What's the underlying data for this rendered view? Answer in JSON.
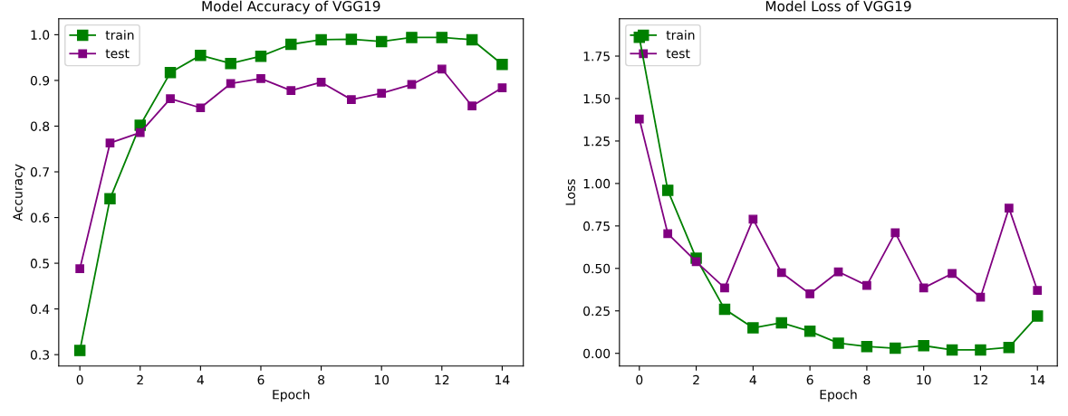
{
  "chart_data": [
    {
      "type": "line",
      "title": "Model Accuracy of VGG19",
      "xlabel": "Epoch",
      "ylabel": "Accuracy",
      "x": [
        0,
        1,
        2,
        3,
        4,
        5,
        6,
        7,
        8,
        9,
        10,
        11,
        12,
        13,
        14
      ],
      "series": [
        {
          "name": "train",
          "color": "#008000",
          "values": [
            0.309,
            0.641,
            0.802,
            0.917,
            0.955,
            0.937,
            0.953,
            0.979,
            0.989,
            0.99,
            0.985,
            0.994,
            0.994,
            0.989,
            0.935
          ]
        },
        {
          "name": "test",
          "color": "#800080",
          "values": [
            0.488,
            0.763,
            0.786,
            0.86,
            0.84,
            0.893,
            0.904,
            0.878,
            0.896,
            0.858,
            0.872,
            0.891,
            0.925,
            0.844,
            0.884
          ]
        }
      ],
      "xlim": [
        -0.7,
        14.7
      ],
      "xticks": [
        0,
        2,
        4,
        6,
        8,
        10,
        12,
        14
      ],
      "ylim": [
        0.275,
        1.035
      ],
      "yticks": [
        {
          "value": 0.3,
          "label": "0.3"
        },
        {
          "value": 0.4,
          "label": "0.4"
        },
        {
          "value": 0.5,
          "label": "0.5"
        },
        {
          "value": 0.6,
          "label": "0.6"
        },
        {
          "value": 0.7,
          "label": "0.7"
        },
        {
          "value": 0.8,
          "label": "0.8"
        },
        {
          "value": 0.9,
          "label": "0.9"
        },
        {
          "value": 1.0,
          "label": "1.0"
        }
      ],
      "legend": "top left",
      "marker": "square",
      "line_style": "solid",
      "grid": false
    },
    {
      "type": "line",
      "title": "Model Loss of VGG19",
      "xlabel": "Epoch",
      "ylabel": "Loss",
      "x": [
        0,
        1,
        2,
        3,
        4,
        5,
        6,
        7,
        8,
        9,
        10,
        11,
        12,
        13,
        14
      ],
      "series": [
        {
          "name": "train",
          "color": "#008000",
          "values": [
            1.86,
            0.96,
            0.56,
            0.26,
            0.15,
            0.18,
            0.13,
            0.06,
            0.04,
            0.03,
            0.045,
            0.02,
            0.02,
            0.035,
            0.22
          ]
        },
        {
          "name": "test",
          "color": "#800080",
          "values": [
            1.38,
            0.705,
            0.54,
            0.385,
            0.79,
            0.475,
            0.35,
            0.48,
            0.4,
            0.71,
            0.385,
            0.47,
            0.33,
            0.855,
            0.37
          ]
        }
      ],
      "xlim": [
        -0.7,
        14.7
      ],
      "xticks": [
        0,
        2,
        4,
        6,
        8,
        10,
        12,
        14
      ],
      "ylim": [
        -0.075,
        1.97
      ],
      "yticks": [
        {
          "value": 0,
          "label": "0.00"
        },
        {
          "value": 0.25,
          "label": "0.25"
        },
        {
          "value": 0.5,
          "label": "0.50"
        },
        {
          "value": 0.75,
          "label": "0.75"
        },
        {
          "value": 1.0,
          "label": "1.00"
        },
        {
          "value": 1.25,
          "label": "1.25"
        },
        {
          "value": 1.5,
          "label": "1.50"
        },
        {
          "value": 1.75,
          "label": "1.75"
        }
      ],
      "legend": "top left",
      "marker": "square",
      "line_style": "solid",
      "grid": false
    }
  ]
}
